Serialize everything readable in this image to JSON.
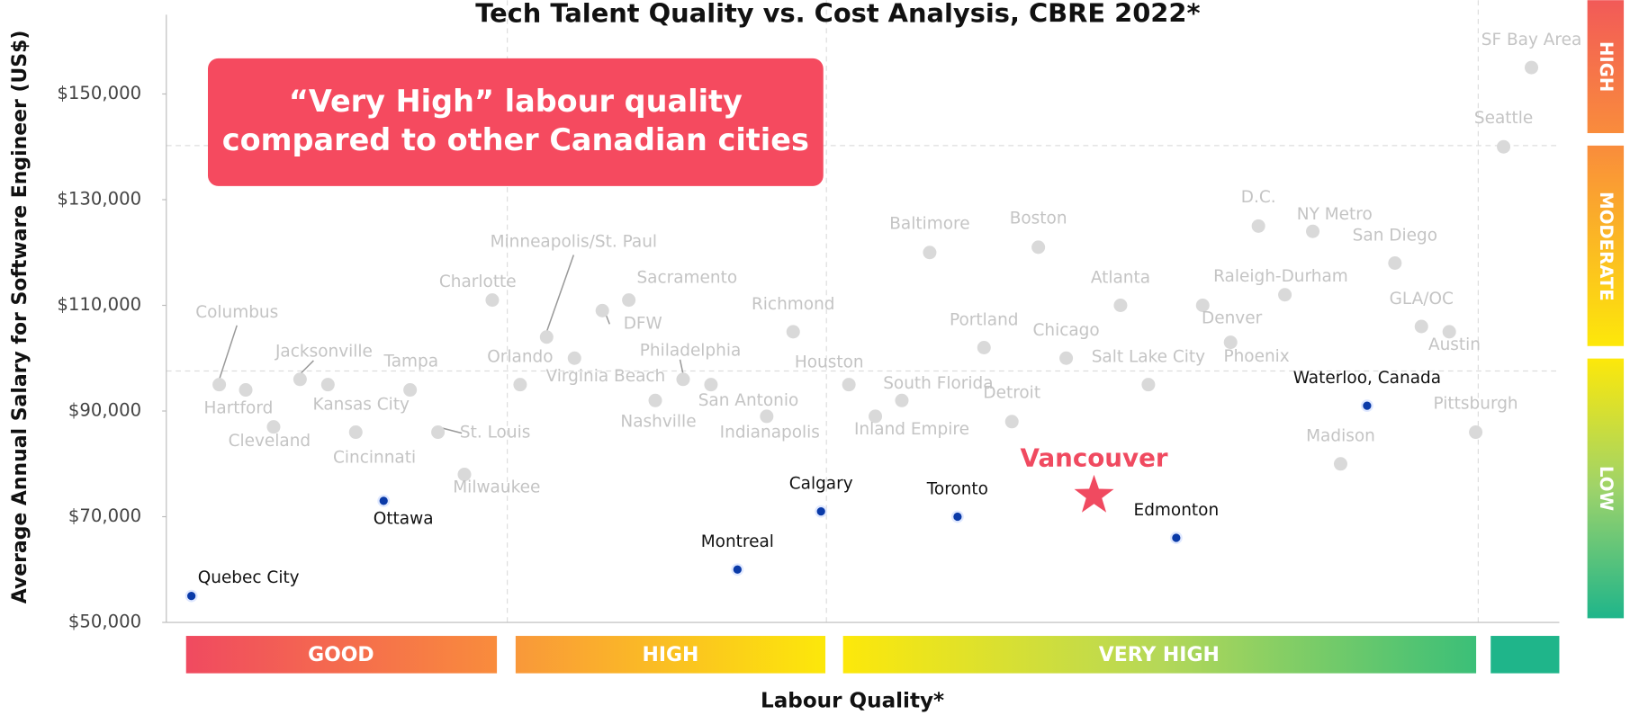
{
  "chart_data": {
    "type": "scatter",
    "title": "Tech Talent Quality vs. Cost Analysis, CBRE 2022*",
    "xlabel": "Labour Quality*",
    "ylabel": "Average Annual Salary for Software Engineer (US$)",
    "annotation": [
      "“Very High” labour quality",
      "compared to other Canadian cities"
    ],
    "x_bands": [
      "GOOD",
      "HIGH",
      "VERY HIGH"
    ],
    "y_bands": [
      "HIGH",
      "MODERATE",
      "LOW"
    ],
    "xlim": [
      0,
      100
    ],
    "ylim": [
      50000,
      165000
    ],
    "yticks": [
      {
        "value": 50000,
        "label": "$50,000"
      },
      {
        "value": 70000,
        "label": "$70,000"
      },
      {
        "value": 90000,
        "label": "$90,000"
      },
      {
        "value": 110000,
        "label": "$110,000"
      },
      {
        "value": 130000,
        "label": "$130,000"
      },
      {
        "value": 150000,
        "label": "$150,000"
      }
    ],
    "groups": [
      {
        "color": "#d9d9d9",
        "label_color": "#c4c4c4",
        "points": [
          {
            "label": "Columbus",
            "x": 3.8,
            "y": 95000
          },
          {
            "label": "Hartford",
            "x": 5.7,
            "y": 94000
          },
          {
            "label": "Cleveland",
            "x": 7.7,
            "y": 87000
          },
          {
            "label": "Jacksonville",
            "x": 9.6,
            "y": 96000
          },
          {
            "label": "Kansas City",
            "x": 11.6,
            "y": 95000
          },
          {
            "label": "Cincinnati",
            "x": 13.6,
            "y": 86000
          },
          {
            "label": "Tampa",
            "x": 17.5,
            "y": 94000
          },
          {
            "label": "St. Louis",
            "x": 19.5,
            "y": 86000
          },
          {
            "label": "Milwaukee",
            "x": 21.4,
            "y": 78000
          },
          {
            "label": "Charlotte",
            "x": 23.4,
            "y": 111000
          },
          {
            "label": "Orlando",
            "x": 25.4,
            "y": 95000
          },
          {
            "label": "Minneapolis/St. Paul",
            "x": 27.3,
            "y": 104000
          },
          {
            "label": "Virginia Beach",
            "x": 29.3,
            "y": 100000
          },
          {
            "label": "DFW",
            "x": 31.3,
            "y": 109000
          },
          {
            "label": "Sacramento",
            "x": 33.2,
            "y": 111000
          },
          {
            "label": "Nashville",
            "x": 35.1,
            "y": 92000
          },
          {
            "label": "Philadelphia",
            "x": 37.1,
            "y": 96000
          },
          {
            "label": "San Antonio",
            "x": 39.1,
            "y": 95000
          },
          {
            "label": "Indianapolis",
            "x": 43.1,
            "y": 89000
          },
          {
            "label": "Richmond",
            "x": 45.0,
            "y": 105000
          },
          {
            "label": "Houston",
            "x": 49.0,
            "y": 95000
          },
          {
            "label": "Inland Empire",
            "x": 50.9,
            "y": 89000
          },
          {
            "label": "South Florida",
            "x": 52.8,
            "y": 92000
          },
          {
            "label": "Baltimore",
            "x": 54.8,
            "y": 120000
          },
          {
            "label": "Portland",
            "x": 58.7,
            "y": 102000
          },
          {
            "label": "Detroit",
            "x": 60.7,
            "y": 88000
          },
          {
            "label": "Boston",
            "x": 62.6,
            "y": 121000
          },
          {
            "label": "Chicago",
            "x": 64.6,
            "y": 100000
          },
          {
            "label": "Atlanta",
            "x": 68.5,
            "y": 110000
          },
          {
            "label": "Salt Lake City",
            "x": 70.5,
            "y": 95000
          },
          {
            "label": "Denver",
            "x": 74.4,
            "y": 110000
          },
          {
            "label": "Phoenix",
            "x": 76.4,
            "y": 103000
          },
          {
            "label": "D.C.",
            "x": 78.4,
            "y": 125000
          },
          {
            "label": "Raleigh-Durham",
            "x": 80.3,
            "y": 112000
          },
          {
            "label": "NY Metro",
            "x": 82.3,
            "y": 124000
          },
          {
            "label": "Madison",
            "x": 84.3,
            "y": 80000
          },
          {
            "label": "San Diego",
            "x": 88.2,
            "y": 118000
          },
          {
            "label": "GLA/OC",
            "x": 90.1,
            "y": 106000
          },
          {
            "label": "Austin",
            "x": 92.1,
            "y": 105000
          },
          {
            "label": "Pittsburgh",
            "x": 94.0,
            "y": 86000
          },
          {
            "label": "Seattle",
            "x": 96.0,
            "y": 140000
          },
          {
            "label": "SF Bay Area",
            "x": 98.0,
            "y": 155000
          }
        ]
      },
      {
        "color": "#0a3aa8",
        "label_color": "#111111",
        "points": [
          {
            "label": "Quebec City",
            "x": 1.8,
            "y": 55000
          },
          {
            "label": "Ottawa",
            "x": 15.6,
            "y": 73000
          },
          {
            "label": "Montreal",
            "x": 41.0,
            "y": 60000
          },
          {
            "label": "Calgary",
            "x": 47.0,
            "y": 71000
          },
          {
            "label": "Toronto",
            "x": 56.8,
            "y": 70000
          },
          {
            "label": "Edmonton",
            "x": 72.5,
            "y": 66000
          },
          {
            "label": "Waterloo, Canada",
            "x": 86.2,
            "y": 91000
          }
        ]
      }
    ],
    "highlight": {
      "label": "Vancouver",
      "x": 66.6,
      "y": 74000,
      "color": "#f04a60"
    }
  }
}
